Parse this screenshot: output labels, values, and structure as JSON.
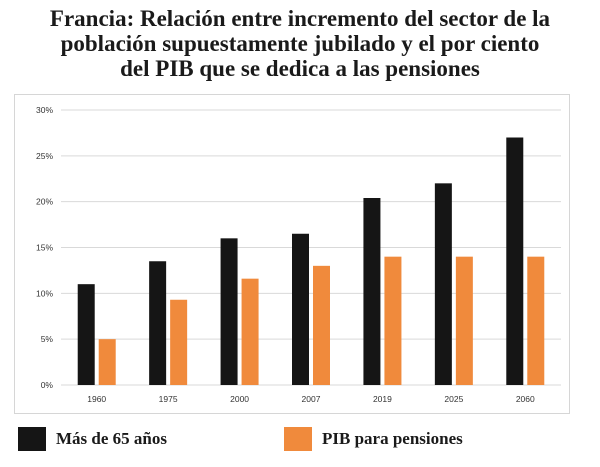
{
  "title_lines": [
    "Francia: Relación entre incremento del sector de la",
    "población supuestamente jubilado y el por ciento",
    "del PIB que se dedica a las pensiones"
  ],
  "colors": {
    "series1": "#151515",
    "series2": "#f08a3c",
    "grid": "#d9d9d9"
  },
  "chart_data": {
    "type": "bar",
    "title": "Francia: Relación entre incremento del sector de la población supuestamente jubilado y el por ciento del PIB que se dedica a las pensiones",
    "categories": [
      "1960",
      "1975",
      "2000",
      "2007",
      "2019",
      "2025",
      "2060"
    ],
    "series": [
      {
        "name": "Más de 65 años",
        "values": [
          11,
          13.5,
          16,
          16.5,
          20.4,
          22,
          27
        ]
      },
      {
        "name": "PIB para pensiones",
        "values": [
          5,
          9.3,
          11.6,
          13,
          14,
          14,
          14
        ]
      }
    ],
    "xlabel": "",
    "ylabel": "",
    "ylim": [
      0,
      30
    ],
    "yticks": [
      "0%",
      "5%",
      "10%",
      "15%",
      "20%",
      "25%",
      "30%"
    ],
    "ytick_values": [
      0,
      5,
      10,
      15,
      20,
      25,
      30
    ],
    "grid": true,
    "legend_position": "bottom"
  }
}
